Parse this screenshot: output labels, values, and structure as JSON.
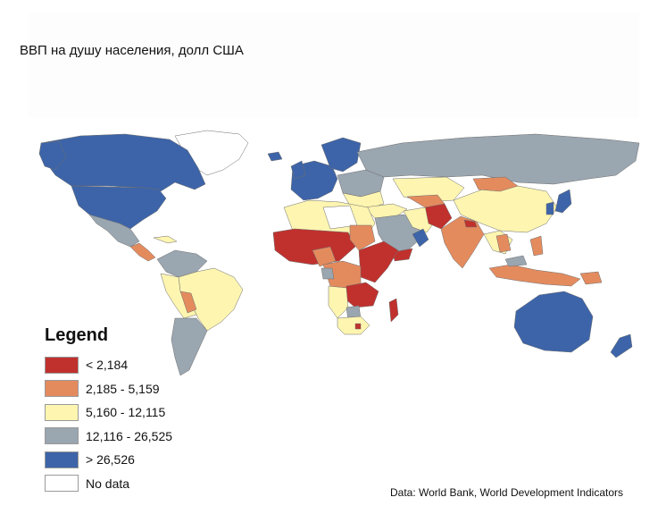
{
  "title": "ВВП на душу населения, долл США",
  "legend": {
    "title": "Legend",
    "items": [
      {
        "label": "< 2,184",
        "color": "#c0312e"
      },
      {
        "label": "2,185 - 5,159",
        "color": "#e48b5e"
      },
      {
        "label": "5,160 - 12,115",
        "color": "#fdf5b0"
      },
      {
        "label": "12,116 - 26,525",
        "color": "#9aa6b0"
      },
      {
        "label": "> 26,526",
        "color": "#3d64a8"
      },
      {
        "label": "No data",
        "color": "#ffffff"
      }
    ]
  },
  "source": "Data: World Bank, World Development Indicators"
}
